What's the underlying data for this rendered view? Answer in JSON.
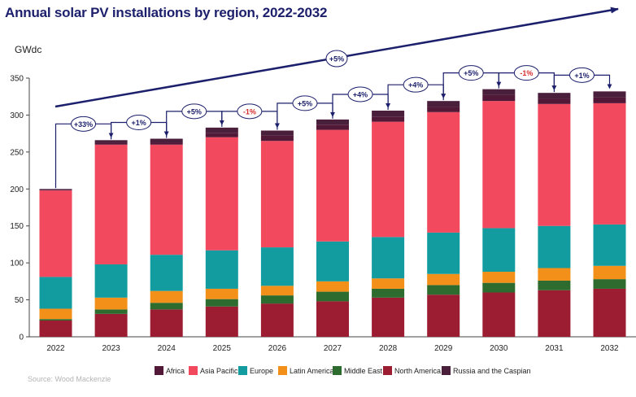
{
  "chart_data": {
    "type": "bar",
    "stacked": true,
    "title": "Annual solar PV installations by region, 2022-2032",
    "ylabel": "GWdc",
    "xlabel": "",
    "ylim": [
      0,
      350
    ],
    "yticks": [
      0,
      50,
      100,
      150,
      200,
      250,
      300,
      350
    ],
    "grid": false,
    "legend_position": "bottom",
    "categories": [
      "2022",
      "2023",
      "2024",
      "2025",
      "2026",
      "2027",
      "2028",
      "2029",
      "2030",
      "2031",
      "2032"
    ],
    "series": [
      {
        "name": "North America",
        "color": "#9c1c31",
        "values": [
          22,
          31,
          37,
          41,
          45,
          48,
          53,
          57,
          60,
          63,
          65
        ]
      },
      {
        "name": "Middle East",
        "color": "#2e6b2e",
        "values": [
          2,
          6,
          9,
          10,
          11,
          13,
          12,
          13,
          13,
          13,
          13
        ]
      },
      {
        "name": "Latin America",
        "color": "#f39019",
        "values": [
          14,
          16,
          16,
          14,
          13,
          14,
          14,
          15,
          15,
          17,
          18
        ]
      },
      {
        "name": "Europe",
        "color": "#139ca0",
        "values": [
          43,
          45,
          49,
          52,
          52,
          54,
          56,
          56,
          59,
          57,
          56
        ]
      },
      {
        "name": "Asia Pacific",
        "color": "#f2495f",
        "values": [
          117,
          162,
          149,
          153,
          144,
          151,
          156,
          163,
          172,
          165,
          164
        ]
      },
      {
        "name": "Africa",
        "color": "#511838",
        "values": [
          1,
          2,
          3,
          6,
          7,
          7,
          7,
          7,
          8,
          7,
          8
        ]
      },
      {
        "name": "Russia and the Caspian",
        "color": "#4a1f3c",
        "values": [
          1,
          4,
          5,
          7,
          7,
          7,
          8,
          8,
          8,
          8,
          8
        ]
      }
    ],
    "totals": [
      200,
      266,
      268,
      283,
      279,
      294,
      306,
      319,
      335,
      330,
      332
    ],
    "growth_labels": [
      "+33%",
      "+1%",
      "+5%",
      "-1%",
      "+5%",
      "+4%",
      "+4%",
      "+5%",
      "-1%",
      "+1%"
    ],
    "growth_label_colors": [
      "#1c1f6b",
      "#1c1f6b",
      "#1c1f6b",
      "#d62b2b",
      "#1c1f6b",
      "#1c1f6b",
      "#1c1f6b",
      "#1c1f6b",
      "#d62b2b",
      "#1c1f6b"
    ],
    "trend_label": "+5%",
    "legend_order": [
      "Africa",
      "Asia Pacific",
      "Europe",
      "Latin America",
      "Middle East",
      "North America",
      "Russia and the Caspian"
    ]
  },
  "source": "Source: Wood Mackenzie"
}
